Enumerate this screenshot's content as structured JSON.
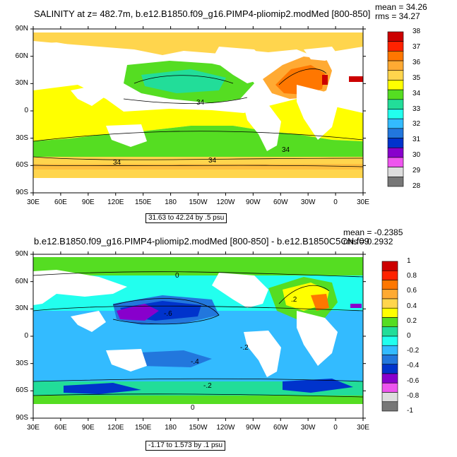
{
  "panels": [
    {
      "title": "SALINITY at z= 482.7m, b.e12.B1850.f09_g16.PIMP4-pliomip2.modMed [800-850]",
      "stats": [
        "mean = 34.26",
        "rms = 34.27"
      ],
      "range_label": "31.63 to 42.24 by .5 psu",
      "contour_labels": [
        "34",
        "34",
        "34",
        "34"
      ],
      "colorbar": {
        "labels": [
          "38",
          "37",
          "36",
          "35",
          "34",
          "33",
          "32",
          "31",
          "30",
          "29",
          "28"
        ],
        "colors": [
          "#cc0000",
          "#ff2200",
          "#ff7700",
          "#ffaa33",
          "#ffd54d",
          "#ffff00",
          "#55dd22",
          "#22dd99",
          "#22ffee",
          "#33bbff",
          "#2277dd",
          "#0033cc",
          "#8800cc",
          "#ee55ee",
          "#dddddd",
          "#777777"
        ]
      }
    },
    {
      "title": "b.e12.B1850.f09_g16.PIMP4-pliomip2.modMed [800-850] - b.e12.B1850C5CN.f09",
      "stats": [
        "mean = -0.2385",
        "rms = 0.2932"
      ],
      "range_label": "-1.17 to 1.573 by .1 psu",
      "contour_labels": [
        "0",
        "-.2",
        "-.4",
        "-.6",
        "-.2",
        "0",
        ".2"
      ],
      "colorbar": {
        "labels": [
          "1",
          "0.8",
          "0.6",
          "0.4",
          "0.2",
          "0",
          "-0.2",
          "-0.4",
          "-0.6",
          "-0.8",
          "-1"
        ],
        "colors": [
          "#cc0000",
          "#ff2200",
          "#ff7700",
          "#ffaa33",
          "#ffd54d",
          "#ffff00",
          "#55dd22",
          "#22dd99",
          "#22ffee",
          "#33bbff",
          "#2277dd",
          "#0033cc",
          "#8800cc",
          "#ee55ee",
          "#dddddd",
          "#777777"
        ]
      }
    }
  ],
  "axes": {
    "lat_labels": [
      "90N",
      "60N",
      "30N",
      "0",
      "30S",
      "60S",
      "90S"
    ],
    "lon_labels": [
      "30E",
      "60E",
      "90E",
      "120E",
      "150E",
      "180",
      "150W",
      "120W",
      "90W",
      "60W",
      "30W",
      "0",
      "30E"
    ]
  }
}
